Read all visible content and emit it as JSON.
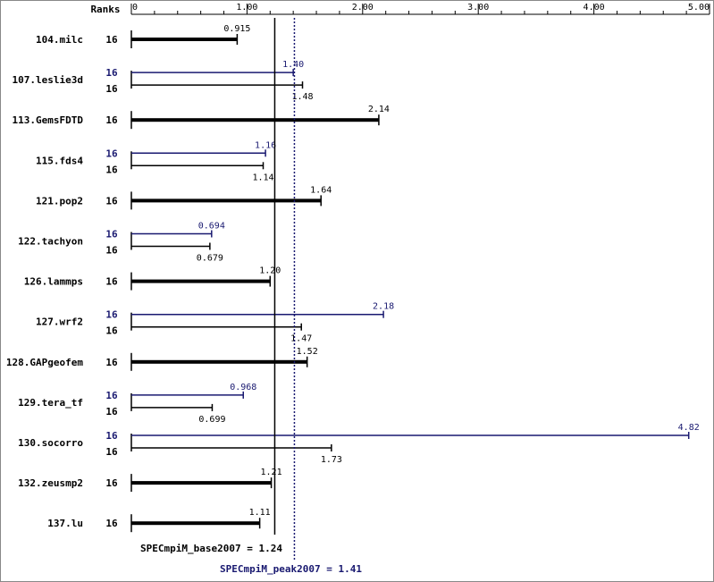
{
  "chart_data": {
    "type": "bar",
    "orientation": "horizontal",
    "header": {
      "ranks_label": "Ranks"
    },
    "x_ticks": [
      "0",
      "1.00",
      "2.00",
      "3.00",
      "4.00",
      "5.00"
    ],
    "xlim": [
      0,
      5.0
    ],
    "colors": {
      "base": "#000000",
      "peak": "#191970"
    },
    "benchmarks": [
      {
        "name": "104.milc",
        "base": {
          "rank": "16",
          "value": 0.915,
          "label": "0.915"
        },
        "peak": null
      },
      {
        "name": "107.leslie3d",
        "peak": {
          "rank": "16",
          "value": 1.4,
          "label": "1.40"
        },
        "base": {
          "rank": "16",
          "value": 1.48,
          "label": "1.48"
        }
      },
      {
        "name": "113.GemsFDTD",
        "base": {
          "rank": "16",
          "value": 2.14,
          "label": "2.14"
        },
        "peak": null
      },
      {
        "name": "115.fds4",
        "peak": {
          "rank": "16",
          "value": 1.16,
          "label": "1.16"
        },
        "base": {
          "rank": "16",
          "value": 1.14,
          "label": "1.14"
        }
      },
      {
        "name": "121.pop2",
        "base": {
          "rank": "16",
          "value": 1.64,
          "label": "1.64"
        },
        "peak": null
      },
      {
        "name": "122.tachyon",
        "peak": {
          "rank": "16",
          "value": 0.694,
          "label": "0.694"
        },
        "base": {
          "rank": "16",
          "value": 0.679,
          "label": "0.679"
        }
      },
      {
        "name": "126.lammps",
        "base": {
          "rank": "16",
          "value": 1.2,
          "label": "1.20"
        },
        "peak": null
      },
      {
        "name": "127.wrf2",
        "peak": {
          "rank": "16",
          "value": 2.18,
          "label": "2.18"
        },
        "base": {
          "rank": "16",
          "value": 1.47,
          "label": "1.47"
        }
      },
      {
        "name": "128.GAPgeofem",
        "base": {
          "rank": "16",
          "value": 1.52,
          "label": "1.52"
        },
        "peak": null
      },
      {
        "name": "129.tera_tf",
        "peak": {
          "rank": "16",
          "value": 0.968,
          "label": "0.968"
        },
        "base": {
          "rank": "16",
          "value": 0.699,
          "label": "0.699"
        }
      },
      {
        "name": "130.socorro",
        "peak": {
          "rank": "16",
          "value": 4.82,
          "label": "4.82"
        },
        "base": {
          "rank": "16",
          "value": 1.73,
          "label": "1.73"
        }
      },
      {
        "name": "132.zeusmp2",
        "base": {
          "rank": "16",
          "value": 1.21,
          "label": "1.21"
        },
        "peak": null
      },
      {
        "name": "137.lu",
        "base": {
          "rank": "16",
          "value": 1.11,
          "label": "1.11"
        },
        "peak": null
      }
    ],
    "reference_lines": {
      "base": {
        "value": 1.24,
        "label": "SPECmpiM_base2007 = 1.24"
      },
      "peak": {
        "value": 1.41,
        "label": "SPECmpiM_peak2007 = 1.41"
      }
    }
  }
}
